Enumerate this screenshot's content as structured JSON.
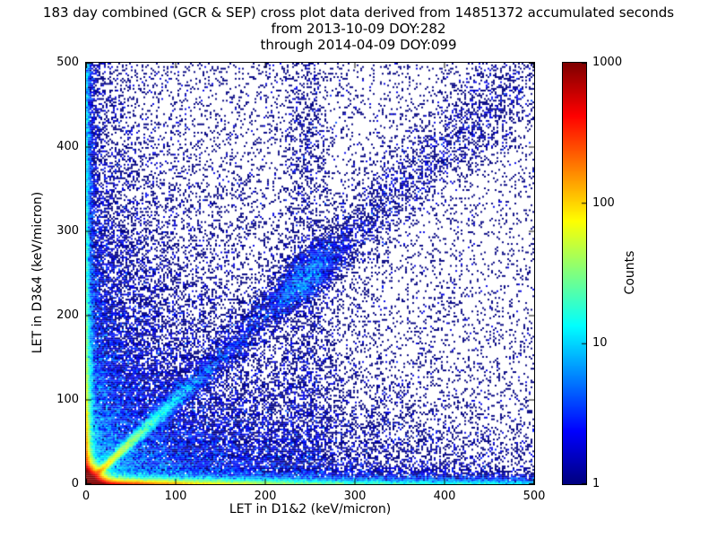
{
  "chart_data": {
    "type": "heatmap",
    "title": "183 day combined (GCR & SEP) cross plot data derived from 14851372 accumulated seconds",
    "subtitle_lines": [
      "from 2013-10-09 DOY:282",
      "through 2014-04-09 DOY:099"
    ],
    "xlabel": "LET in D1&2 (keV/micron)",
    "ylabel": "LET in D3&4 (keV/micron)",
    "xlim": [
      0,
      500
    ],
    "ylim": [
      0,
      500
    ],
    "xticks": [
      0,
      100,
      200,
      300,
      400,
      500
    ],
    "yticks": [
      0,
      100,
      200,
      300,
      400,
      500
    ],
    "grid": false,
    "colorbar": {
      "label": "Counts",
      "scale": "log",
      "min": 1,
      "max": 1000,
      "ticks": [
        1,
        10,
        100,
        1000
      ],
      "colormap": "jet"
    },
    "distribution_features": [
      "very dense hot spot (counts up to ~1000, red/yellow) at origin below ~15 keV/micron in both detectors",
      "bright horizontal band along y~0 extending to ~150 keV/micron in D1&2",
      "bright vertical band along x~0 extending to ~70 keV/micron in D3&4",
      "correlated diagonal band y~x, cyan/green up to ~70 then sparse blue to ~500 with a denser cluster near (245,245)",
      "sparse single-count dark blue points scattered over the whole plane, denser toward low LET"
    ],
    "density_model": {
      "seed": 42,
      "bin_size": 2,
      "components": [
        {
          "kind": "exp_exp",
          "n": 150000,
          "sx": 5,
          "sy": 5
        },
        {
          "kind": "exp_exp",
          "n": 20000,
          "sx": 45,
          "sy": 2
        },
        {
          "kind": "exp_exp",
          "n": 15000,
          "sx": 150,
          "sy": 3
        },
        {
          "kind": "exp_exp",
          "n": 9000,
          "sx": 2,
          "sy": 50
        },
        {
          "kind": "exp_exp",
          "n": 5000,
          "sx": 3,
          "sy": 150
        },
        {
          "kind": "exp_uniform",
          "n": 4000,
          "sx": 3
        },
        {
          "kind": "uniform_exp",
          "n": 5000,
          "sy": 4
        },
        {
          "kind": "diag_exp",
          "n": 12000,
          "scale": 45,
          "sigma0": 1.5,
          "sigma_slope": 0.03
        },
        {
          "kind": "diag_normal",
          "n": 2500,
          "mu": 245,
          "sd": 20,
          "sigma0": 4,
          "sigma_slope": 0.03
        },
        {
          "kind": "diag_uniform",
          "n": 5000,
          "sigma0": 3,
          "sigma_slope": 0.05
        },
        {
          "kind": "exp_exp",
          "n": 20000,
          "sx": 120,
          "sy": 120
        },
        {
          "kind": "exp_exp",
          "n": 6000,
          "sx": 25,
          "sy": 180
        },
        {
          "kind": "exp_exp",
          "n": 8000,
          "sx": 180,
          "sy": 40
        },
        {
          "kind": "normal_uniform",
          "n": 1500,
          "mu": 245,
          "sd": 15
        },
        {
          "kind": "uniform_uniform",
          "n": 7000
        }
      ]
    }
  }
}
